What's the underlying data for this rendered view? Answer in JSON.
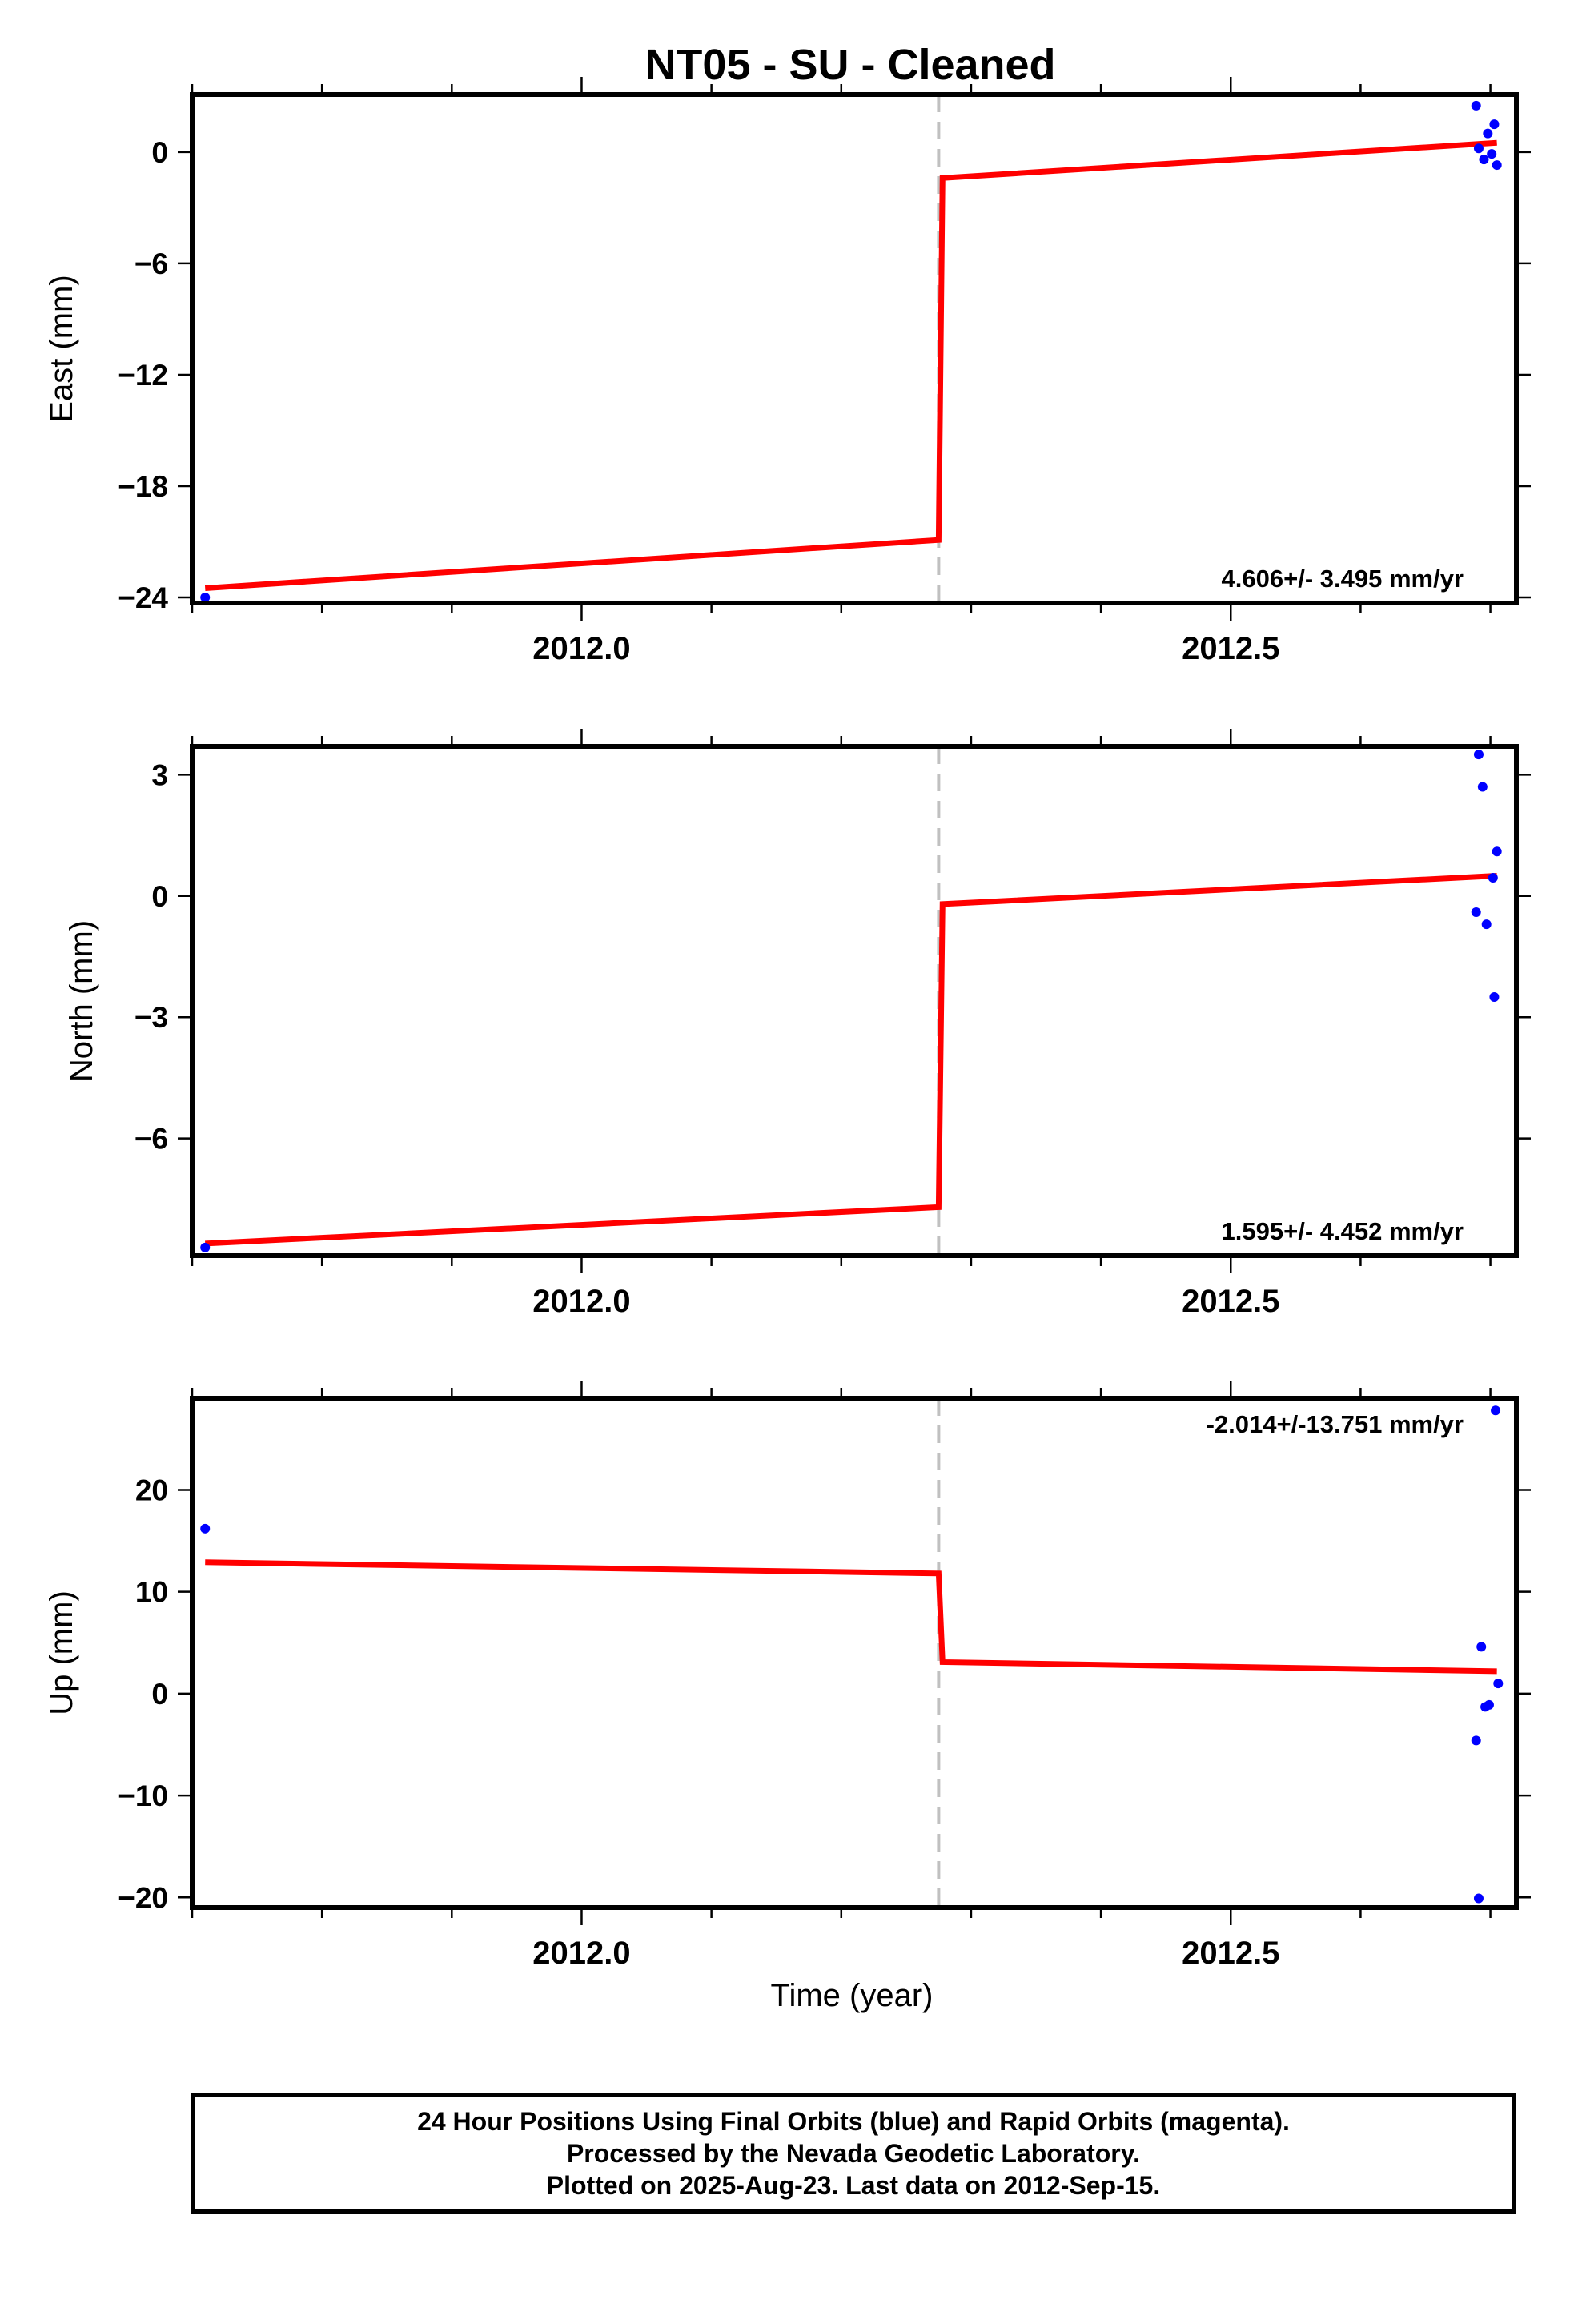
{
  "figure": {
    "title": "NT05  - SU - Cleaned",
    "x_axis_label": "Time (year)",
    "colors": {
      "data": "#0000ff",
      "model": "#ff0000",
      "event_line": "#c0c0c0",
      "frame": "#000000"
    }
  },
  "footer": {
    "line1": "24 Hour Positions Using Final Orbits (blue) and Rapid Orbits (magenta).",
    "line2": "Processed by the Nevada Geodetic Laboratory.",
    "line3": "Plotted on 2025-Aug-23. Last data on 2012-Sep-15."
  },
  "chart_data": [
    {
      "type": "scatter",
      "ylabel": "East (mm)",
      "xlim": [
        2011.7,
        2012.72
      ],
      "ylim": [
        -24.3,
        3.1
      ],
      "yticks": [
        -24,
        -18,
        -12,
        -6,
        0
      ],
      "ytick_labels": [
        "−24",
        "−18",
        "−12",
        "−6",
        "0"
      ],
      "xticks": [
        2012.0,
        2012.5
      ],
      "xtick_labels": [
        "2012.0",
        "2012.5"
      ],
      "rate_label": "4.606+/- 3.495 mm/yr",
      "rate_position": "bottom",
      "event_x": 2012.275,
      "points": [
        {
          "x": 2011.71,
          "y": -24.0
        },
        {
          "x": 2012.689,
          "y": 2.5
        },
        {
          "x": 2012.703,
          "y": 1.5
        },
        {
          "x": 2012.698,
          "y": 1.0
        },
        {
          "x": 2012.691,
          "y": 0.2
        },
        {
          "x": 2012.695,
          "y": -0.4
        },
        {
          "x": 2012.701,
          "y": -0.1
        },
        {
          "x": 2012.705,
          "y": -0.7
        }
      ],
      "model_segments": [
        [
          [
            2011.71,
            -23.5
          ],
          [
            2012.275,
            -20.9
          ]
        ],
        [
          [
            2012.275,
            -20.9
          ],
          [
            2012.278,
            -1.4
          ]
        ],
        [
          [
            2012.278,
            -1.4
          ],
          [
            2012.705,
            0.5
          ]
        ]
      ]
    },
    {
      "type": "scatter",
      "ylabel": "North (mm)",
      "xlim": [
        2011.7,
        2012.72
      ],
      "ylim": [
        -8.9,
        3.7
      ],
      "yticks": [
        -6,
        -3,
        0,
        3
      ],
      "ytick_labels": [
        "−6",
        "−3",
        "0",
        "3"
      ],
      "xticks": [
        2012.0,
        2012.5
      ],
      "xtick_labels": [
        "2012.0",
        "2012.5"
      ],
      "rate_label": "1.595+/- 4.452 mm/yr",
      "rate_position": "bottom",
      "event_x": 2012.275,
      "points": [
        {
          "x": 2011.71,
          "y": -8.7
        },
        {
          "x": 2012.691,
          "y": 3.5
        },
        {
          "x": 2012.694,
          "y": 2.7
        },
        {
          "x": 2012.705,
          "y": 1.1
        },
        {
          "x": 2012.702,
          "y": 0.45
        },
        {
          "x": 2012.689,
          "y": -0.4
        },
        {
          "x": 2012.697,
          "y": -0.7
        },
        {
          "x": 2012.703,
          "y": -2.5
        }
      ],
      "model_segments": [
        [
          [
            2011.71,
            -8.6
          ],
          [
            2012.275,
            -7.7
          ]
        ],
        [
          [
            2012.275,
            -7.7
          ],
          [
            2012.278,
            -0.2
          ]
        ],
        [
          [
            2012.278,
            -0.2
          ],
          [
            2012.705,
            0.5
          ]
        ]
      ]
    },
    {
      "type": "scatter",
      "ylabel": "Up (mm)",
      "xlim": [
        2011.7,
        2012.72
      ],
      "ylim": [
        -21,
        29
      ],
      "yticks": [
        -20,
        -10,
        0,
        10,
        20
      ],
      "ytick_labels": [
        "−20",
        "−10",
        "0",
        "10",
        "20"
      ],
      "xticks": [
        2012.0,
        2012.5
      ],
      "xtick_labels": [
        "2012.0",
        "2012.5"
      ],
      "rate_label": "-2.014+/-13.751 mm/yr",
      "rate_position": "top",
      "event_x": 2012.275,
      "points": [
        {
          "x": 2011.71,
          "y": 16.2
        },
        {
          "x": 2012.704,
          "y": 27.8
        },
        {
          "x": 2012.693,
          "y": 4.6
        },
        {
          "x": 2012.706,
          "y": 1.0
        },
        {
          "x": 2012.699,
          "y": -1.1
        },
        {
          "x": 2012.696,
          "y": -1.3
        },
        {
          "x": 2012.689,
          "y": -4.6
        },
        {
          "x": 2012.691,
          "y": -20.1
        }
      ],
      "model_segments": [
        [
          [
            2011.71,
            12.9
          ],
          [
            2012.275,
            11.8
          ]
        ],
        [
          [
            2012.275,
            11.8
          ],
          [
            2012.278,
            3.1
          ]
        ],
        [
          [
            2012.278,
            3.1
          ],
          [
            2012.705,
            2.2
          ]
        ]
      ]
    }
  ]
}
